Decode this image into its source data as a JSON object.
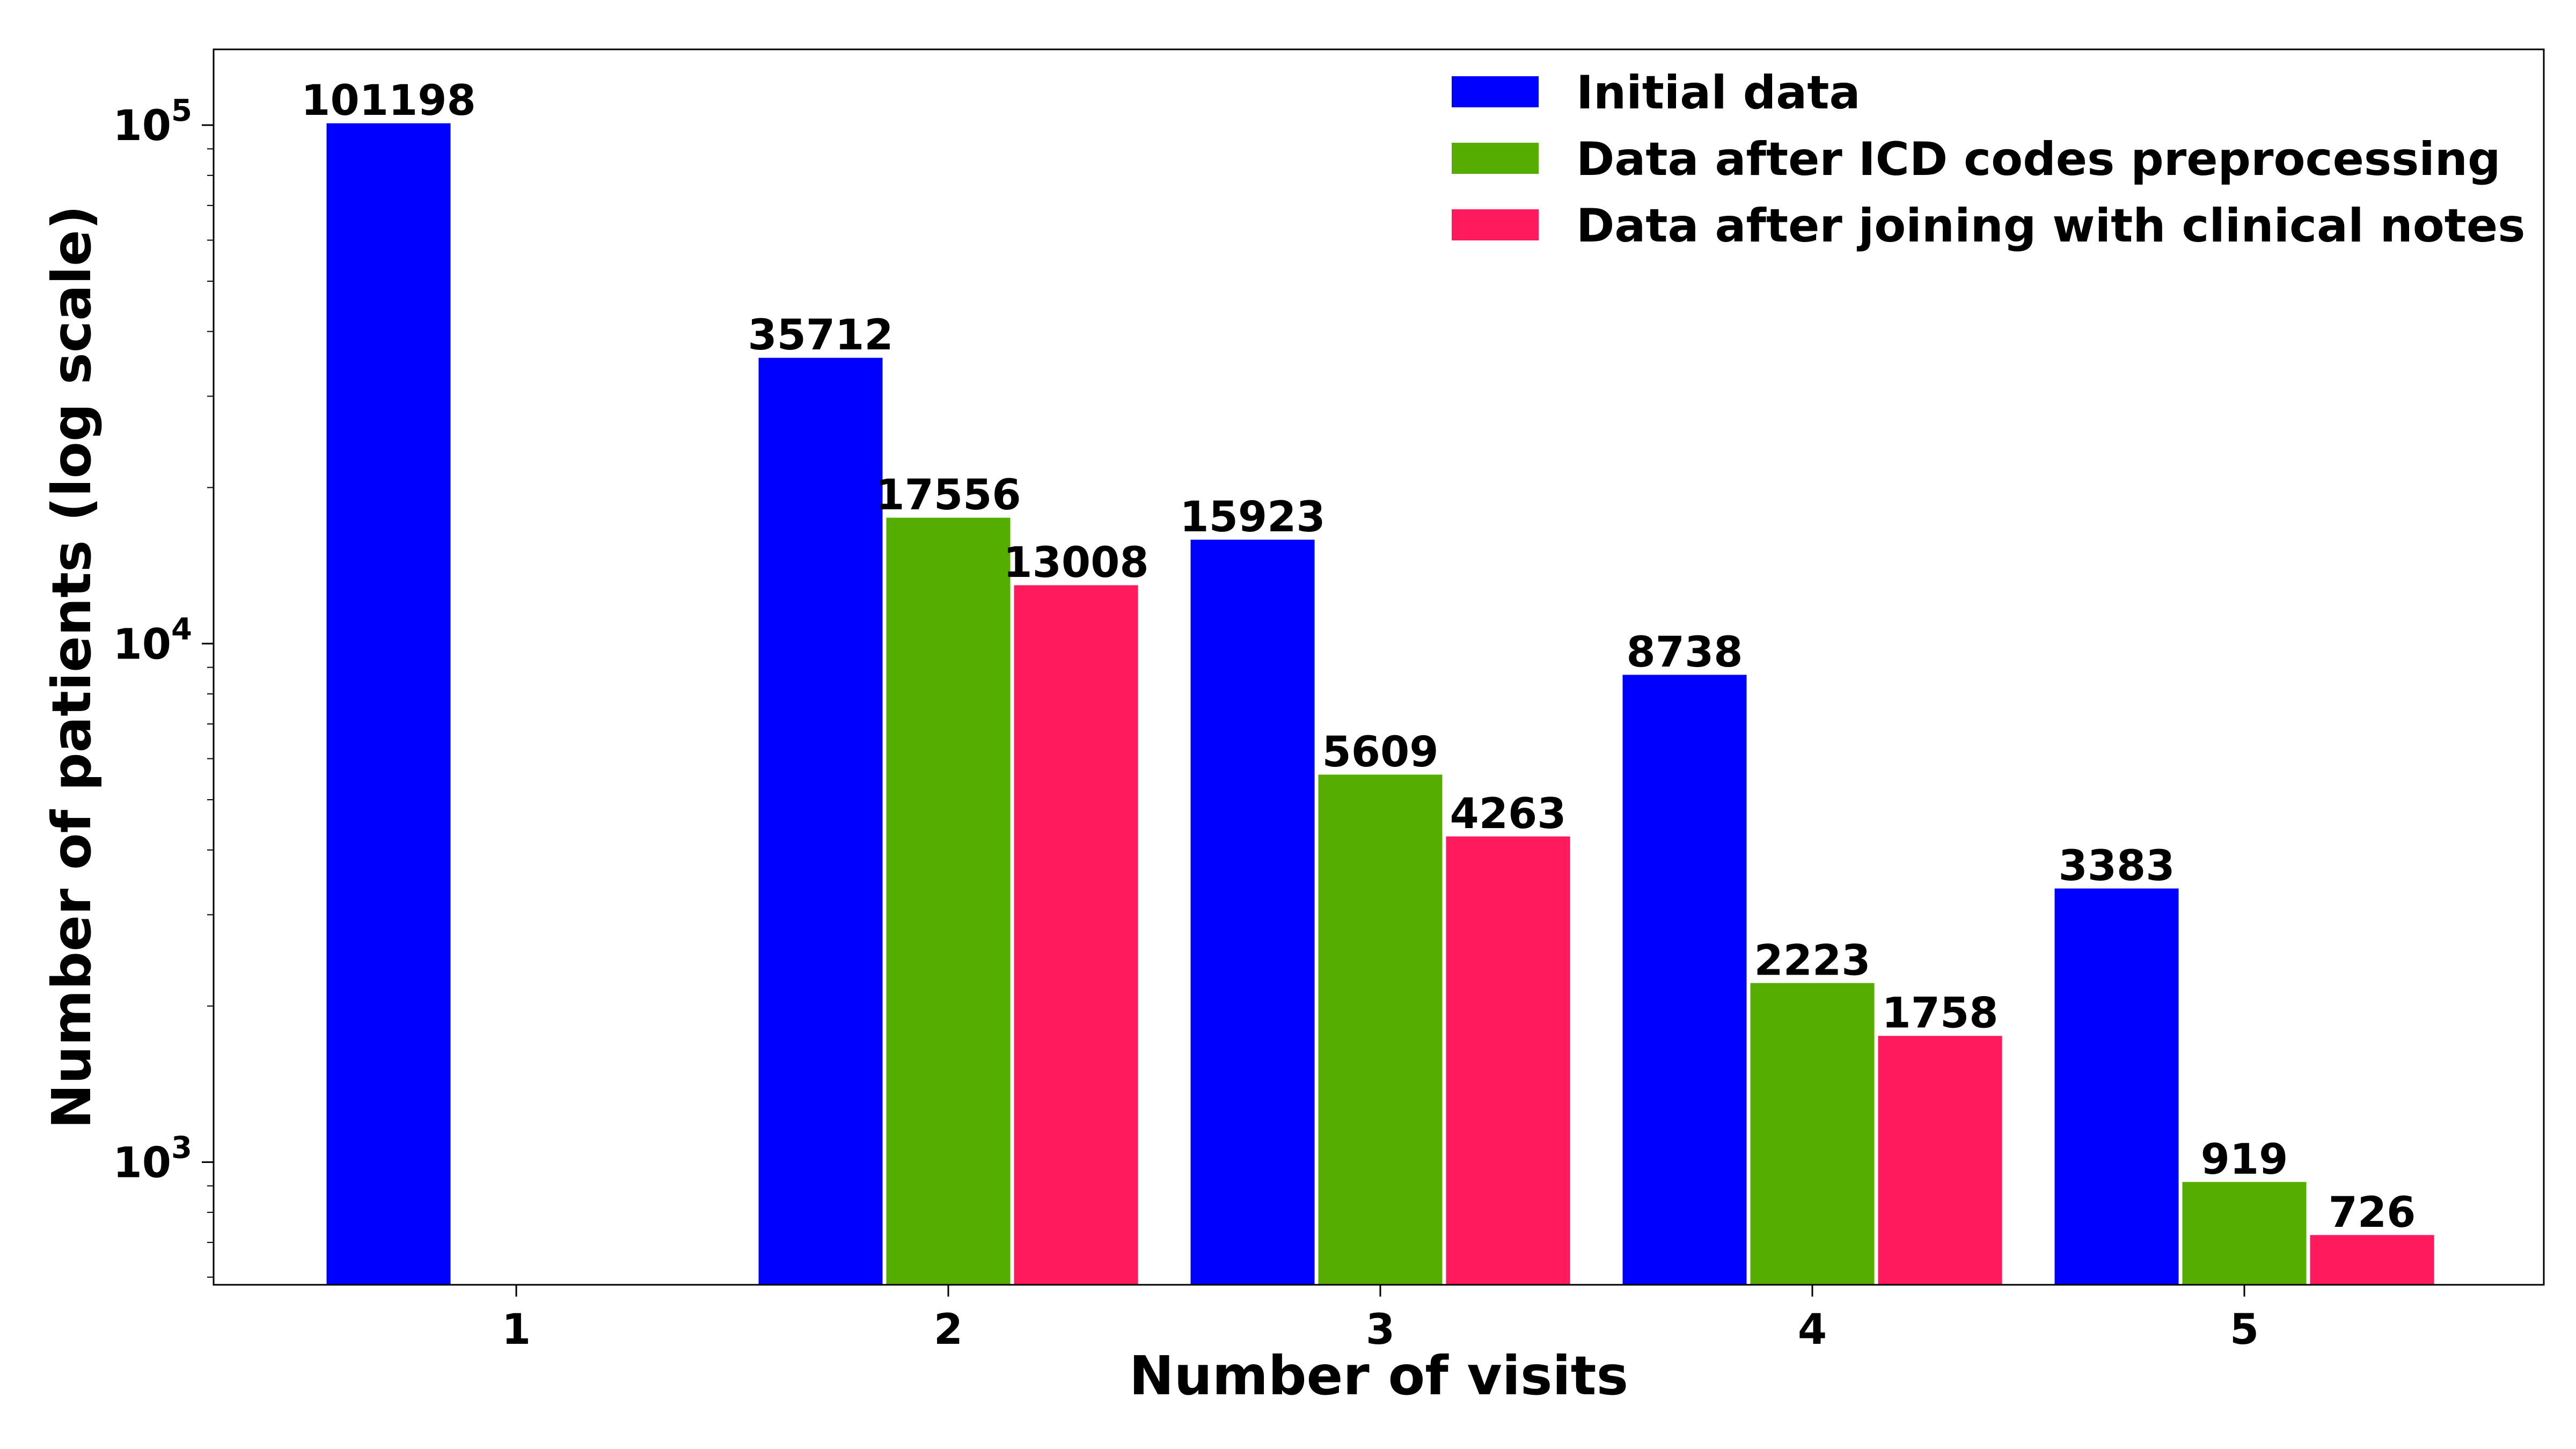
{
  "chart_data": {
    "type": "bar",
    "title": "",
    "xlabel": "Number of visits",
    "ylabel": "Number of patients (log scale)",
    "yscale": "log",
    "ylim": [
      580,
      140000
    ],
    "grid": false,
    "legend_position": "top-right",
    "categories": [
      "1",
      "2",
      "3",
      "4",
      "5"
    ],
    "y_ticks": [
      {
        "value": 1000,
        "base": "10",
        "exp": "3"
      },
      {
        "value": 10000,
        "base": "10",
        "exp": "4"
      },
      {
        "value": 100000,
        "base": "10",
        "exp": "5"
      }
    ],
    "series": [
      {
        "name": "Initial data",
        "color": "#0000ff",
        "values": [
          101198,
          35712,
          15923,
          8738,
          3383
        ]
      },
      {
        "name": "Data after ICD codes preprocessing",
        "color": "#55ad00",
        "values": [
          null,
          17556,
          5609,
          2223,
          919
        ]
      },
      {
        "name": "Data after joining with clinical notes",
        "color": "#ff1a5e",
        "values": [
          null,
          13008,
          4263,
          1758,
          726
        ]
      }
    ]
  }
}
